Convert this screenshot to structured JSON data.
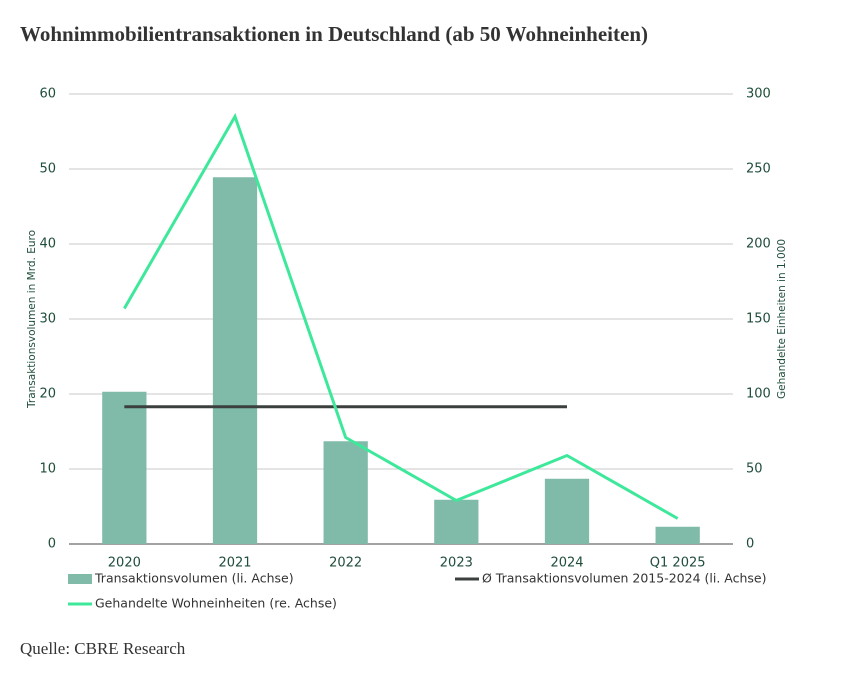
{
  "chart_data": {
    "type": "bar",
    "title": "Wohnimmobilientransaktionen in Deutschland (ab 50 Wohneinheiten)",
    "y_label": "Transaktionsvolumen in Mrd. Euro",
    "y2_label": "Gehandelte Einheiten in 1.000",
    "source": "Quelle: CBRE Research",
    "categories": [
      "2020",
      "2021",
      "2022",
      "2023",
      "2024",
      "Q1 2025"
    ],
    "series": [
      {
        "name": "Transaktionsvolumen (li. Achse)",
        "type": "bar",
        "color": "#80bbaa",
        "values": [
          20.3,
          48.9,
          13.7,
          5.9,
          8.7,
          2.3
        ]
      },
      {
        "name": "Ø Transaktionsvolumen 2015-2024 (li. Achse)",
        "type": "line",
        "color": "#3b403e",
        "values": [
          18.3,
          18.3,
          18.3,
          18.3,
          18.3,
          null
        ]
      },
      {
        "name": "Gehandelte Wohneinheiten (re. Achse)",
        "type": "line",
        "axis": "y2",
        "color": "#3ee89b",
        "values": [
          157,
          285,
          71,
          29,
          59,
          17
        ]
      }
    ],
    "ylim": [
      0,
      60
    ],
    "yticks": [
      0,
      10,
      20,
      30,
      40,
      50,
      60
    ],
    "y2lim": [
      0,
      300
    ],
    "y2ticks": [
      0,
      50,
      100,
      150,
      200,
      250,
      300
    ],
    "grid": true
  }
}
